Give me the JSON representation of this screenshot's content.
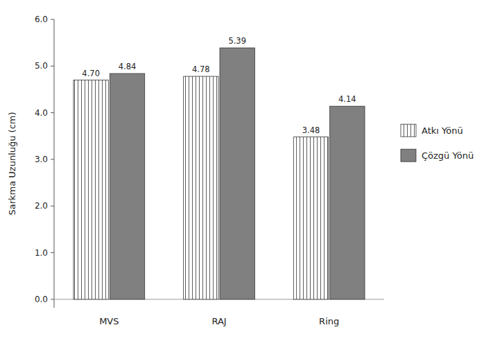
{
  "chart_data": {
    "type": "bar",
    "categories": [
      "MVS",
      "RAJ",
      "Ring"
    ],
    "series": [
      {
        "name": "Atkı Yönü",
        "color": "#ffffff",
        "values": [
          4.7,
          4.78,
          3.48
        ],
        "value_labels": [
          "4.70",
          "4.78",
          "3.48"
        ]
      },
      {
        "name": "Çözgü Yönü",
        "color": "#808080",
        "values": [
          4.84,
          5.39,
          4.14
        ],
        "value_labels": [
          "4.84",
          "5.39",
          "4.14"
        ]
      }
    ],
    "ylabel": "Sarkma Uzunluğu (cm)",
    "ylim": [
      -0.18,
      6.0
    ],
    "yticks": [
      {
        "value": 0.0,
        "label": "0.0"
      },
      {
        "value": 1.0,
        "label": "1.0"
      },
      {
        "value": 2.0,
        "label": "2.0"
      },
      {
        "value": 3.0,
        "label": "3.0"
      },
      {
        "value": 4.0,
        "label": "4.0"
      },
      {
        "value": 5.0,
        "label": "5.0"
      },
      {
        "value": 6.0,
        "label": "6.0"
      }
    ],
    "data_labels": true,
    "legend": "right",
    "grid": false
  }
}
